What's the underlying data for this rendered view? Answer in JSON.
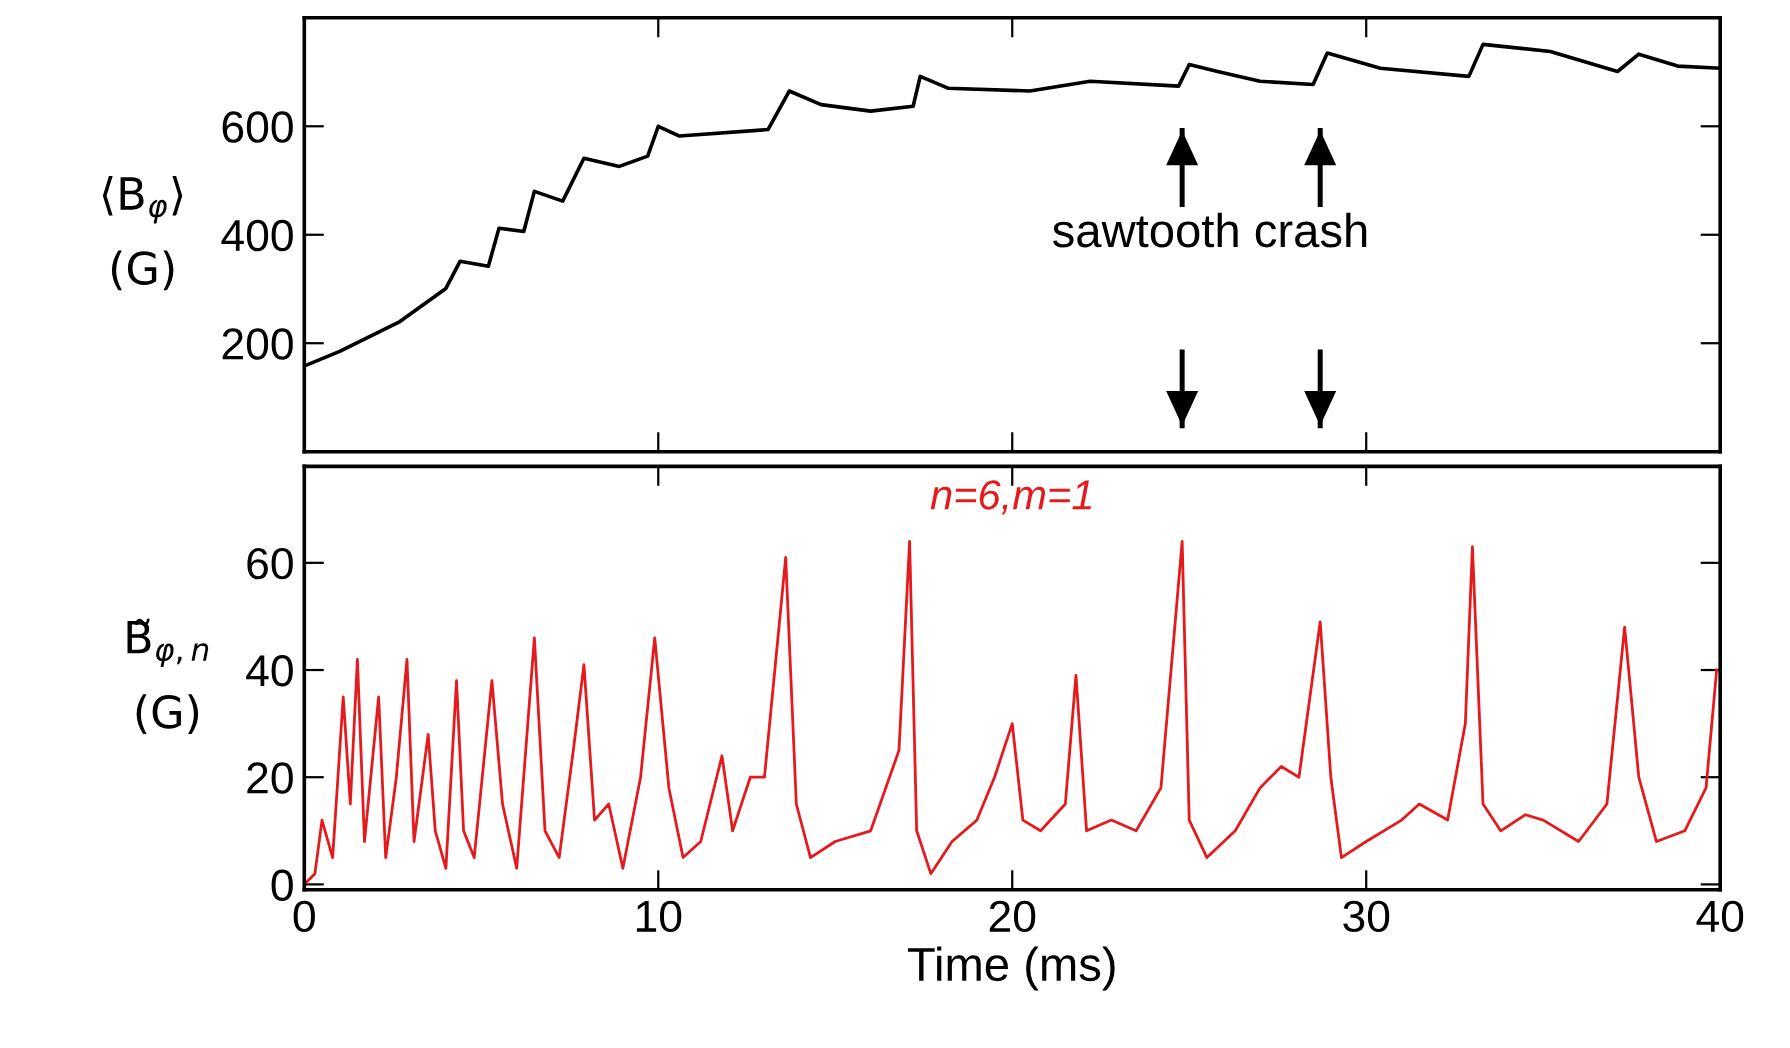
{
  "chart_data": [
    {
      "type": "line",
      "ylabel": "⟨B$_{φ}$⟩\n(G)",
      "xlim": [
        0,
        40
      ],
      "xticks": [
        0,
        10,
        20,
        30,
        40
      ],
      "ylim": [
        0,
        800
      ],
      "yticks": [
        200,
        400,
        600
      ],
      "tick_labels": "y",
      "grid": false,
      "series": [
        {
          "color": "#000000",
          "x": [
            0,
            1,
            2.7,
            4,
            4.4,
            5.2,
            5.5,
            6.2,
            6.5,
            7.3,
            7.9,
            8.9,
            9.7,
            10.0,
            10.6,
            13.1,
            13.7,
            14.6,
            16.0,
            17.2,
            17.4,
            18.2,
            20.5,
            22.2,
            24.7,
            25.0,
            25.8,
            27.0,
            28.5,
            28.9,
            30.4,
            32.9,
            33.3,
            35.2,
            37.1,
            37.7,
            38.8,
            40
          ],
          "values": [
            158,
            185,
            240,
            301,
            351,
            342,
            412,
            406,
            480,
            462,
            541,
            526,
            545,
            600,
            582,
            594,
            665,
            640,
            628,
            637,
            692,
            670,
            665,
            683,
            674,
            714,
            701,
            683,
            677,
            735,
            707,
            692,
            751,
            738,
            701,
            733,
            711,
            707
          ]
        }
      ],
      "annotations": [
        "sawtooth crash"
      ],
      "ref_lines": [
        {
          "axis": "x",
          "value": 24.8
        },
        {
          "axis": "x",
          "value": 28.7
        }
      ]
    },
    {
      "type": "line",
      "ylabel": "B̃$_{φ,n}$\n(G)",
      "xlabel": "Time (ms)",
      "xlim": [
        0,
        40
      ],
      "xticks": [
        0,
        10,
        20,
        30,
        40
      ],
      "ylim": [
        -1,
        78
      ],
      "yticks": [
        0,
        20,
        40,
        60
      ],
      "grid": false,
      "series": [
        {
          "name": "n=6,m=1",
          "color": "#e41a1c",
          "x": [
            0,
            0.3,
            0.5,
            0.8,
            1.1,
            1.3,
            1.5,
            1.7,
            2.1,
            2.3,
            2.6,
            2.9,
            3.1,
            3.5,
            3.7,
            4.0,
            4.3,
            4.5,
            4.8,
            5.3,
            5.6,
            6.0,
            6.5,
            6.8,
            7.2,
            7.6,
            7.9,
            8.2,
            8.6,
            9.0,
            9.5,
            9.9,
            10.3,
            10.7,
            11.2,
            11.8,
            12.1,
            12.6,
            13.0,
            13.6,
            13.9,
            14.3,
            15.0,
            16.0,
            16.8,
            17.1,
            17.3,
            17.7,
            18.3,
            19.0,
            19.5,
            20.0,
            20.3,
            20.8,
            21.5,
            21.8,
            22.1,
            22.8,
            23.5,
            24.2,
            24.8,
            25.0,
            25.5,
            26.3,
            27.0,
            27.6,
            28.1,
            28.7,
            29.0,
            29.3,
            30.0,
            31.0,
            31.5,
            32.3,
            32.8,
            33.0,
            33.3,
            33.8,
            34.5,
            35.0,
            36.0,
            36.8,
            37.3,
            37.7,
            38.2,
            39.0,
            39.6,
            39.9
          ],
          "values": [
            0,
            2,
            12,
            5,
            35,
            15,
            42,
            8,
            35,
            5,
            20,
            42,
            8,
            28,
            10,
            3,
            38,
            10,
            5,
            38,
            15,
            3,
            46,
            10,
            5,
            25,
            41,
            12,
            15,
            3,
            20,
            46,
            18,
            5,
            8,
            24,
            10,
            20,
            20,
            61,
            15,
            5,
            8,
            10,
            25,
            64,
            10,
            2,
            8,
            12,
            20,
            30,
            12,
            10,
            15,
            39,
            10,
            12,
            10,
            18,
            64,
            12,
            5,
            10,
            18,
            22,
            20,
            49,
            20,
            5,
            8,
            12,
            15,
            12,
            30,
            63,
            15,
            10,
            13,
            12,
            8,
            15,
            48,
            20,
            8,
            10,
            18,
            40
          ]
        }
      ]
    }
  ]
}
